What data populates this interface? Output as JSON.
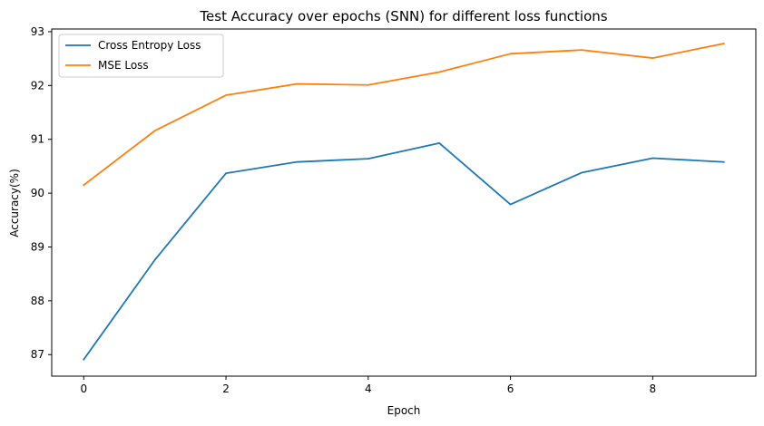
{
  "chart_data": {
    "type": "line",
    "title": "Test Accuracy over epochs (SNN) for different loss functions",
    "xlabel": "Epoch",
    "ylabel": "Accuracy(%)",
    "x": [
      0,
      1,
      2,
      3,
      4,
      5,
      6,
      7,
      8,
      9
    ],
    "xlim": [
      -0.45,
      9.45
    ],
    "ylim": [
      86.6,
      93.05
    ],
    "xticks": [
      0,
      2,
      4,
      6,
      8
    ],
    "yticks": [
      87,
      88,
      89,
      90,
      91,
      92,
      93
    ],
    "grid": false,
    "legend_position": "top-left",
    "series": [
      {
        "name": "Cross Entropy Loss",
        "color": "#1f77b4",
        "values": [
          86.91,
          88.76,
          90.37,
          90.58,
          90.64,
          90.93,
          89.79,
          90.38,
          90.65,
          90.58
        ]
      },
      {
        "name": "MSE Loss",
        "color": "#ff7f0e",
        "values": [
          90.15,
          91.16,
          91.82,
          92.03,
          92.01,
          92.25,
          92.59,
          92.66,
          92.51,
          92.78
        ]
      }
    ]
  }
}
